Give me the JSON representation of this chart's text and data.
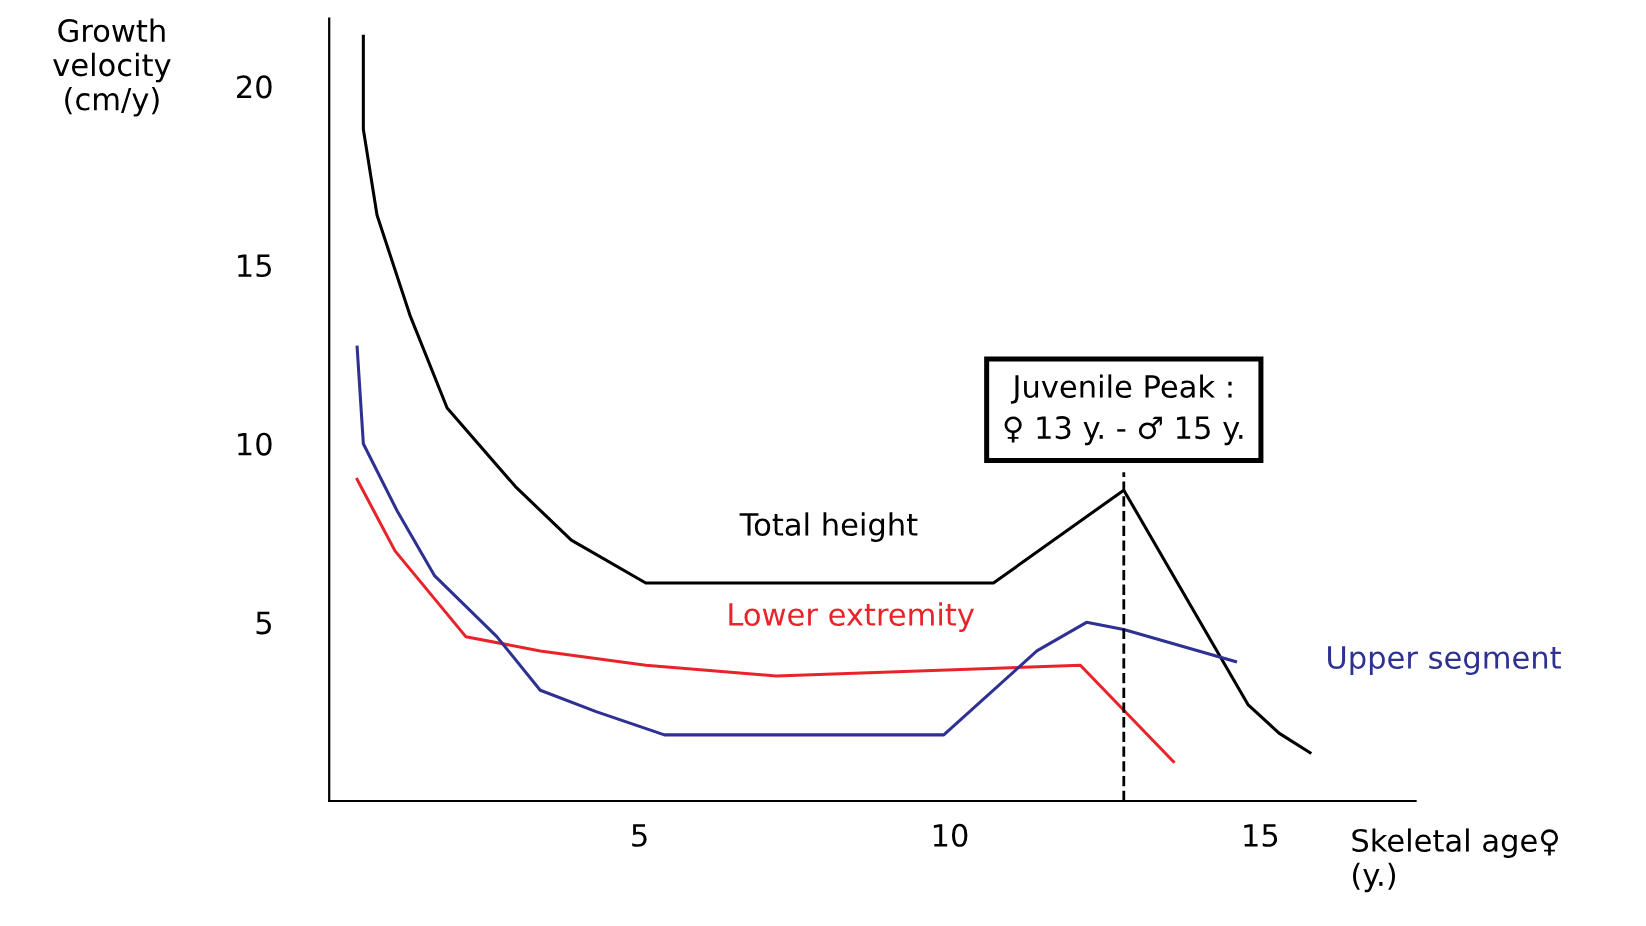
{
  "chart_data": {
    "type": "line",
    "ylabel": "Growth\nvelocity\n(cm/y)",
    "xlabel": "Skeletal age♀\n(y.)",
    "xlim": [
      0,
      17.5
    ],
    "ylim": [
      0,
      21.9
    ],
    "xticks": [
      5,
      10,
      15
    ],
    "yticks": [
      5,
      10,
      15,
      20
    ],
    "grid": false,
    "legend": false,
    "marker": "none",
    "line_style": "solid",
    "series": [
      {
        "name": "Total height",
        "color": "#000000",
        "x": [
          0.55,
          0.55,
          0.77,
          1.3,
          1.9,
          3.0,
          3.9,
          5.1,
          10.7,
          12.8,
          14.8,
          15.3,
          15.8
        ],
        "values": [
          21.4,
          18.8,
          16.4,
          13.6,
          11.0,
          8.8,
          7.3,
          6.1,
          6.1,
          8.7,
          2.7,
          1.9,
          1.35
        ]
      },
      {
        "name": "Lower extremity",
        "color": "#e8232a",
        "x": [
          0.45,
          1.06,
          2.2,
          3.4,
          5.1,
          7.2,
          12.1,
          13.6
        ],
        "values": [
          9.0,
          7.0,
          4.6,
          4.2,
          3.8,
          3.5,
          3.8,
          1.1
        ]
      },
      {
        "name": "Upper segment",
        "color": "#2e3192",
        "x": [
          0.45,
          0.55,
          1.1,
          1.7,
          2.7,
          3.4,
          4.3,
          5.4,
          9.9,
          11.4,
          12.2,
          12.8,
          14.6
        ],
        "values": [
          12.7,
          10.0,
          8.1,
          6.3,
          4.6,
          3.1,
          2.5,
          1.85,
          1.85,
          4.2,
          5.0,
          4.8,
          3.9
        ]
      }
    ],
    "ref_lines": [
      {
        "axis": "x",
        "value": 12.8,
        "label": "Juvenile Peak :\n♀ 13 y. - ♂ 15 y.",
        "line_style": "dashed",
        "color": "#000000"
      }
    ]
  }
}
